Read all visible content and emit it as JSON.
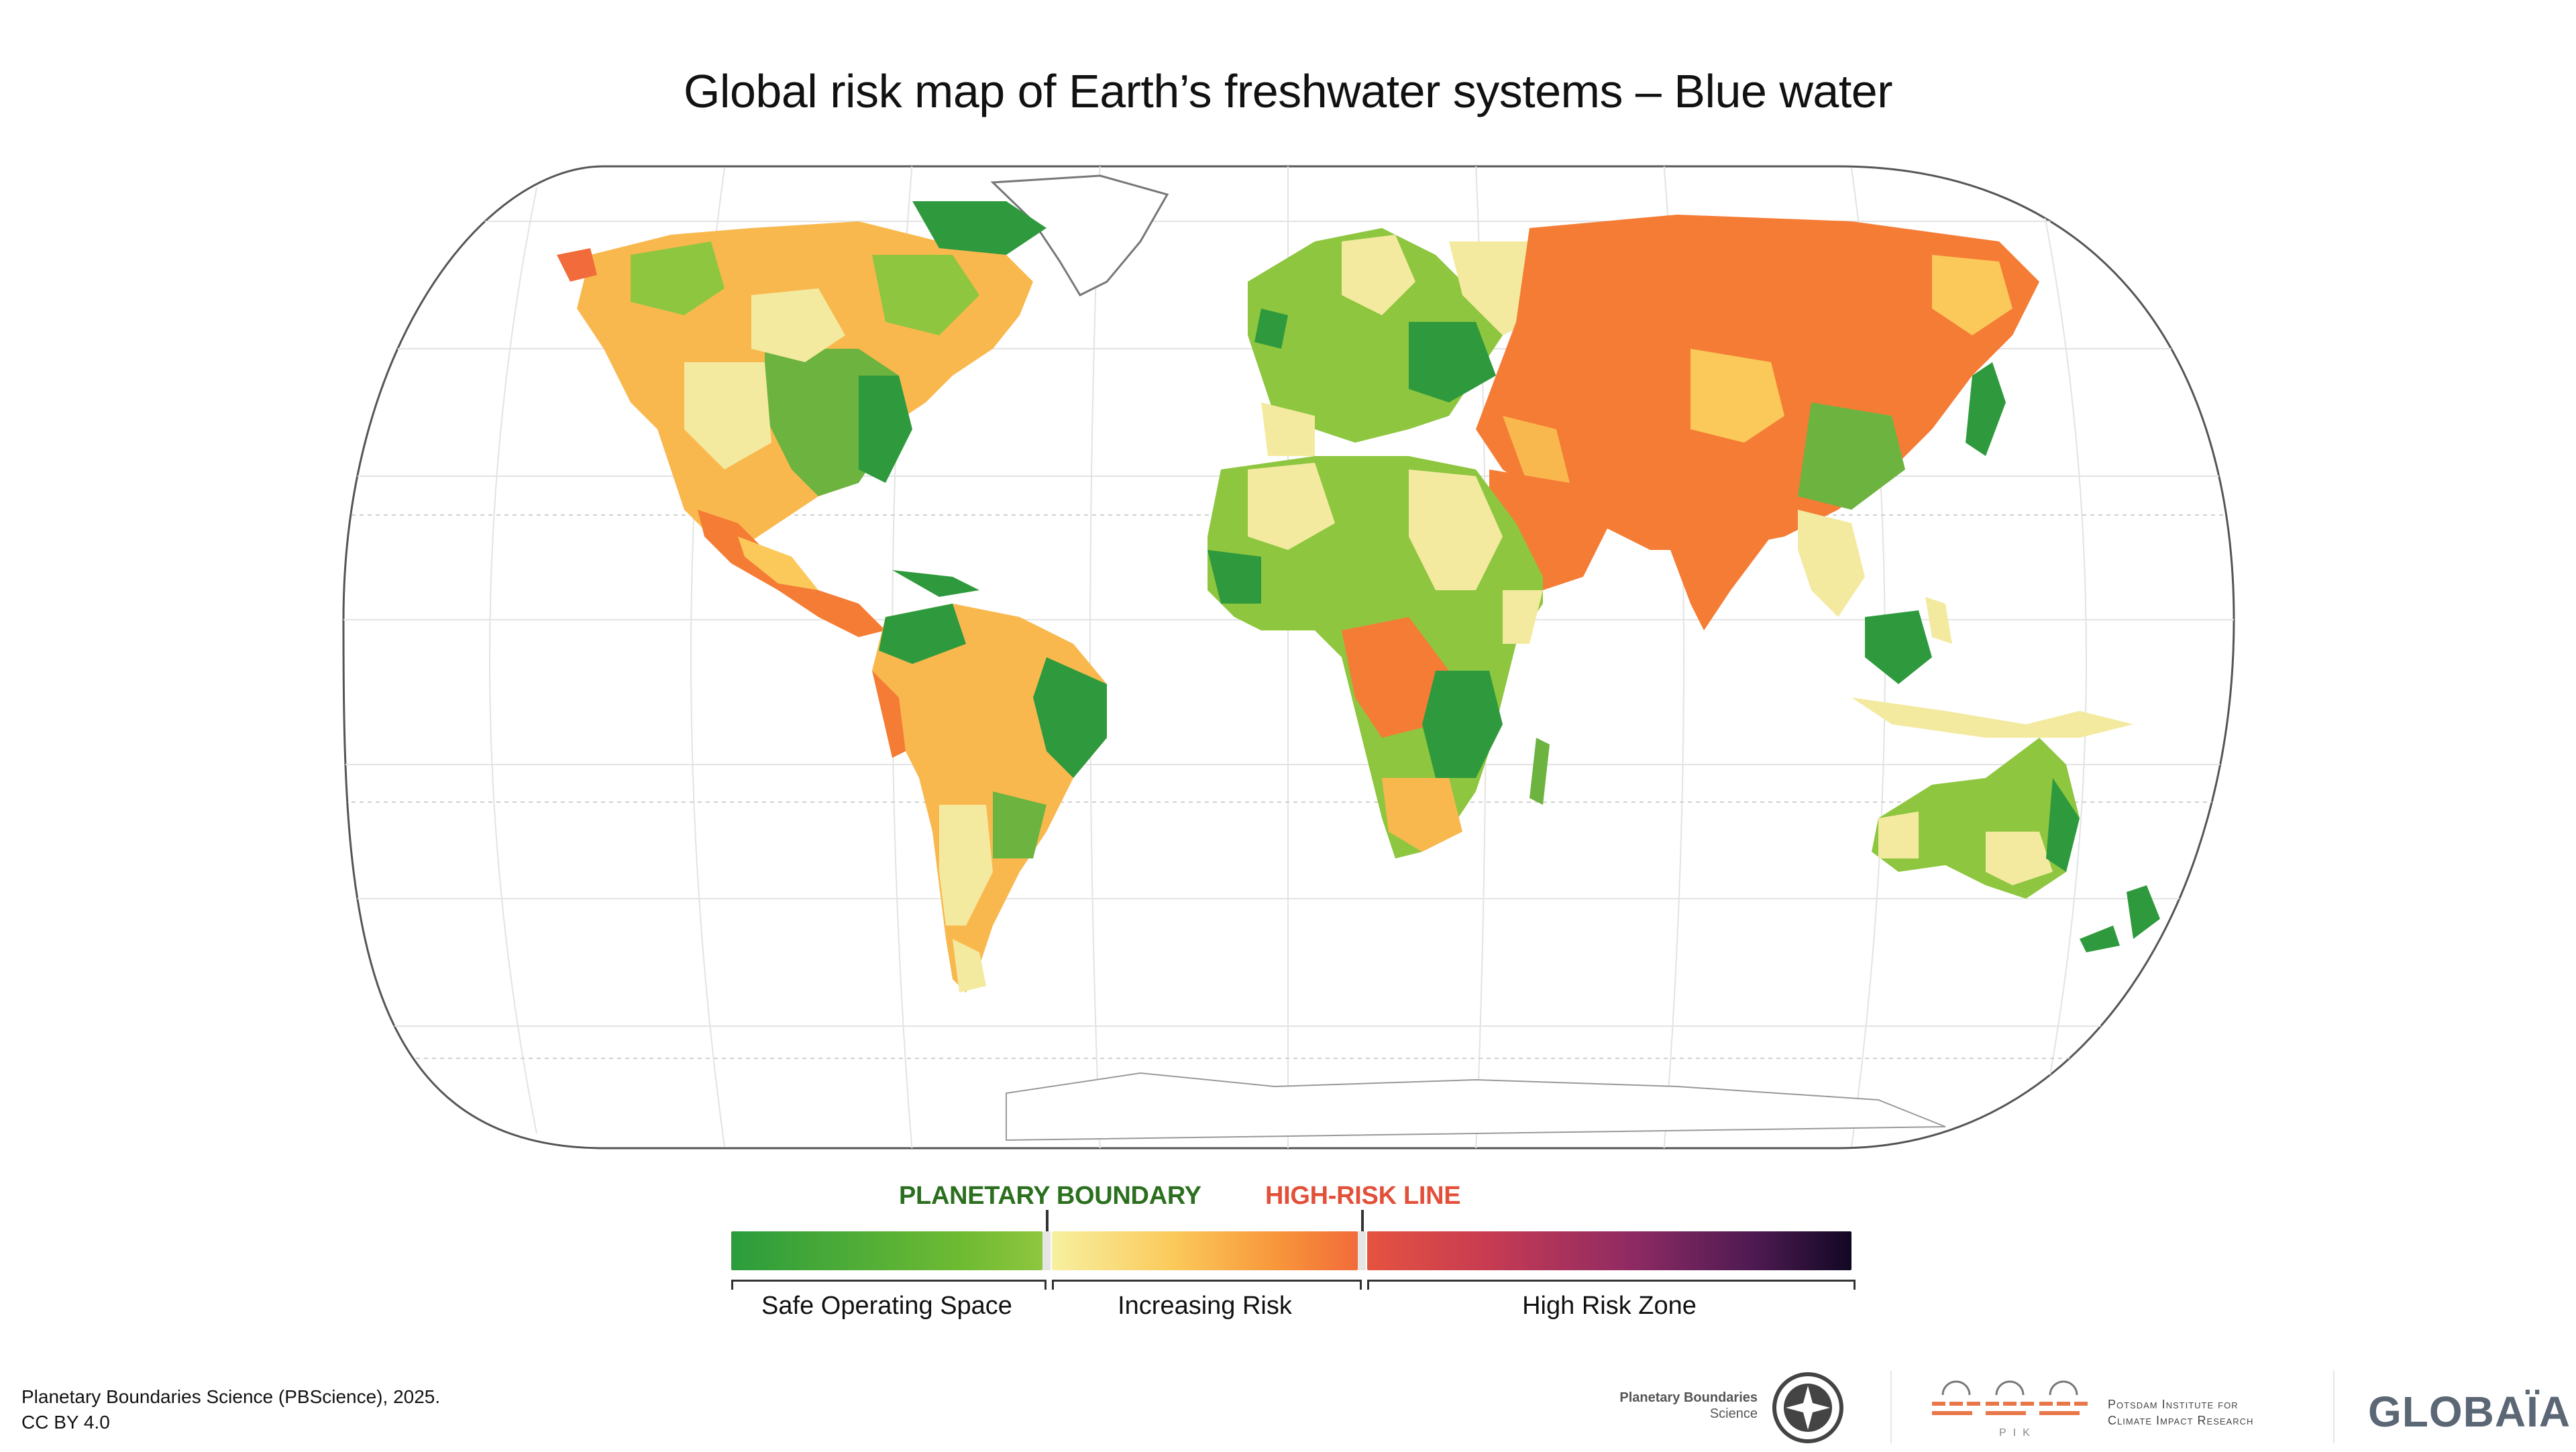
{
  "title": "Global risk map of Earth’s freshwater systems – Blue water",
  "colors": {
    "safe_dark": "#2b9c3c",
    "safe_light": "#8ec63f",
    "risk_pale": "#f7f0a0",
    "risk_mid": "#fbc95a",
    "risk_orange": "#f57c35",
    "high_red": "#e5533f",
    "high_dark": "#120823",
    "ocean": "#ffffff",
    "boundary_label": "#2b6f1f",
    "high_risk_label": "#e2503a"
  },
  "legend": {
    "planetary_boundary": "PLANETARY BOUNDARY",
    "high_risk_line": "HIGH-RISK LINE",
    "safe_operating_space": "Safe Operating Space",
    "increasing_risk": "Increasing Risk",
    "high_risk_zone": "High Risk Zone"
  },
  "credit": {
    "line1": "Planetary Boundaries Science (PBScience), 2025.",
    "line2": "CC BY 4.0"
  },
  "logos": {
    "pbs_line1": "Planetary Boundaries",
    "pbs_line2": "Science",
    "pik_line1": "Potsdam Institute for",
    "pik_line2": "Climate Impact Research",
    "pik_short": "PIK",
    "globaia": "GLOBAÏA"
  }
}
